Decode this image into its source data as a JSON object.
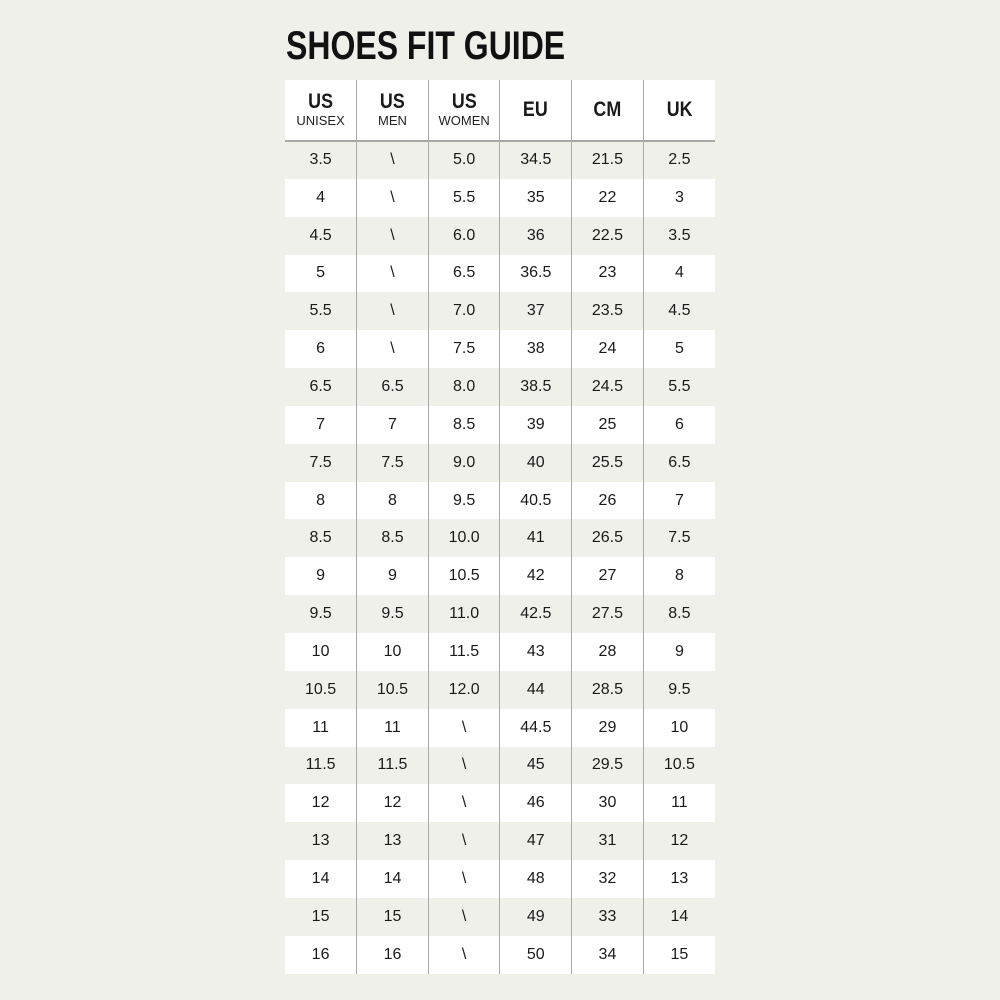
{
  "title": "SHOES FIT GUIDE",
  "columns": [
    {
      "main": "US",
      "sub": "UNISEX"
    },
    {
      "main": "US",
      "sub": "MEN"
    },
    {
      "main": "US",
      "sub": "WOMEN"
    },
    {
      "main": "EU",
      "sub": ""
    },
    {
      "main": "CM",
      "sub": ""
    },
    {
      "main": "UK",
      "sub": ""
    }
  ],
  "rows": [
    [
      "3.5",
      "\\",
      "5.0",
      "34.5",
      "21.5",
      "2.5"
    ],
    [
      "4",
      "\\",
      "5.5",
      "35",
      "22",
      "3"
    ],
    [
      "4.5",
      "\\",
      "6.0",
      "36",
      "22.5",
      "3.5"
    ],
    [
      "5",
      "\\",
      "6.5",
      "36.5",
      "23",
      "4"
    ],
    [
      "5.5",
      "\\",
      "7.0",
      "37",
      "23.5",
      "4.5"
    ],
    [
      "6",
      "\\",
      "7.5",
      "38",
      "24",
      "5"
    ],
    [
      "6.5",
      "6.5",
      "8.0",
      "38.5",
      "24.5",
      "5.5"
    ],
    [
      "7",
      "7",
      "8.5",
      "39",
      "25",
      "6"
    ],
    [
      "7.5",
      "7.5",
      "9.0",
      "40",
      "25.5",
      "6.5"
    ],
    [
      "8",
      "8",
      "9.5",
      "40.5",
      "26",
      "7"
    ],
    [
      "8.5",
      "8.5",
      "10.0",
      "41",
      "26.5",
      "7.5"
    ],
    [
      "9",
      "9",
      "10.5",
      "42",
      "27",
      "8"
    ],
    [
      "9.5",
      "9.5",
      "11.0",
      "42.5",
      "27.5",
      "8.5"
    ],
    [
      "10",
      "10",
      "11.5",
      "43",
      "28",
      "9"
    ],
    [
      "10.5",
      "10.5",
      "12.0",
      "44",
      "28.5",
      "9.5"
    ],
    [
      "11",
      "11",
      "\\",
      "44.5",
      "29",
      "10"
    ],
    [
      "11.5",
      "11.5",
      "\\",
      "45",
      "29.5",
      "10.5"
    ],
    [
      "12",
      "12",
      "\\",
      "46",
      "30",
      "11"
    ],
    [
      "13",
      "13",
      "\\",
      "47",
      "31",
      "12"
    ],
    [
      "14",
      "14",
      "\\",
      "48",
      "32",
      "13"
    ],
    [
      "15",
      "15",
      "\\",
      "49",
      "33",
      "14"
    ],
    [
      "16",
      "16",
      "\\",
      "50",
      "34",
      "15"
    ]
  ]
}
